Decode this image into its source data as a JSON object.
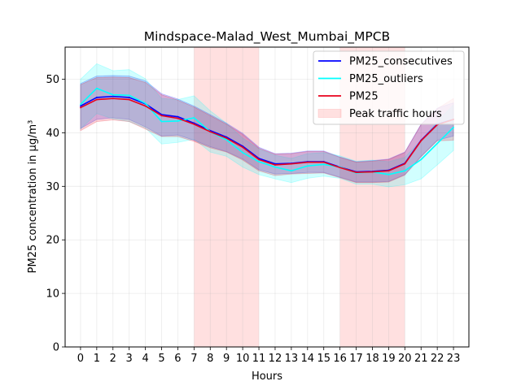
{
  "chart_data": {
    "type": "line",
    "title": "Mindspace-Malad_West_Mumbai_MPCB",
    "xlabel": "Hours",
    "ylabel": "PM25 concentration in µg/m³",
    "x": [
      0,
      1,
      2,
      3,
      4,
      5,
      6,
      7,
      8,
      9,
      10,
      11,
      12,
      13,
      14,
      15,
      16,
      17,
      18,
      19,
      20,
      21,
      22,
      23
    ],
    "x_ticks": [
      "0",
      "1",
      "2",
      "3",
      "4",
      "5",
      "6",
      "7",
      "8",
      "9",
      "10",
      "11",
      "12",
      "13",
      "14",
      "15",
      "16",
      "17",
      "18",
      "19",
      "20",
      "21",
      "22",
      "23"
    ],
    "y_ticks": [
      0,
      10,
      20,
      30,
      40,
      50
    ],
    "xlim": [
      -0.95,
      23.95
    ],
    "ylim": [
      0,
      56
    ],
    "grid": true,
    "legend_position": "top-right",
    "peak_traffic_hours": [
      [
        7,
        11
      ],
      [
        16,
        20
      ]
    ],
    "series": [
      {
        "name": "PM25_consecutives",
        "color": "#0000ff",
        "values": [
          45.0,
          46.6,
          46.8,
          46.6,
          45.4,
          43.4,
          43.0,
          41.8,
          40.4,
          39.2,
          37.5,
          35.2,
          34.2,
          34.3,
          34.6,
          34.6,
          33.6,
          32.7,
          32.8,
          33.0,
          34.3,
          38.6,
          41.6,
          42.5
        ],
        "upper": [
          49.2,
          50.6,
          50.7,
          50.6,
          49.7,
          47.3,
          46.3,
          45.0,
          43.4,
          41.8,
          39.9,
          37.3,
          36.1,
          36.2,
          36.6,
          36.6,
          35.5,
          34.6,
          34.8,
          35.1,
          36.4,
          41.6,
          44.6,
          45.6
        ],
        "lower": [
          40.8,
          42.5,
          42.8,
          42.5,
          41.1,
          39.4,
          39.6,
          38.6,
          37.4,
          36.5,
          35.1,
          33.1,
          32.3,
          32.4,
          32.6,
          32.6,
          31.7,
          30.8,
          30.8,
          30.9,
          32.2,
          35.6,
          38.6,
          39.4
        ]
      },
      {
        "name": "PM25_outliers",
        "color": "#00ffff",
        "values": [
          45.3,
          48.3,
          47.1,
          47.0,
          45.5,
          42.1,
          42.2,
          42.8,
          40.2,
          38.7,
          36.3,
          34.6,
          33.6,
          32.9,
          33.8,
          34.1,
          33.6,
          32.5,
          32.7,
          32.2,
          32.9,
          35.0,
          38.0,
          41.0
        ],
        "upper": [
          50.0,
          52.9,
          51.6,
          51.8,
          50.1,
          46.4,
          46.2,
          46.9,
          44.1,
          41.8,
          39.0,
          37.0,
          35.8,
          35.2,
          36.1,
          36.3,
          35.7,
          34.7,
          34.9,
          34.6,
          35.4,
          38.6,
          42.1,
          45.2
        ],
        "lower": [
          40.7,
          43.6,
          42.6,
          42.1,
          40.9,
          37.9,
          38.2,
          38.8,
          36.4,
          35.6,
          33.6,
          32.2,
          31.4,
          30.7,
          31.5,
          31.9,
          31.5,
          30.4,
          30.4,
          29.9,
          30.3,
          31.4,
          34.0,
          36.7
        ]
      },
      {
        "name": "PM25",
        "color": "#e8001c",
        "values": [
          44.7,
          46.2,
          46.4,
          46.2,
          45.0,
          43.2,
          42.7,
          41.6,
          40.2,
          39.0,
          37.3,
          35.0,
          34.0,
          34.2,
          34.5,
          34.5,
          33.5,
          32.6,
          32.7,
          32.9,
          34.2,
          38.5,
          41.5,
          42.5
        ],
        "upper": [
          49.0,
          50.3,
          50.4,
          50.3,
          49.4,
          47.1,
          46.1,
          44.8,
          43.2,
          41.6,
          39.7,
          37.1,
          36.0,
          36.1,
          36.5,
          36.5,
          35.4,
          34.5,
          34.7,
          35.0,
          36.3,
          41.5,
          44.5,
          46.4
        ],
        "lower": [
          40.4,
          42.1,
          42.4,
          42.1,
          40.7,
          39.3,
          39.3,
          38.4,
          37.2,
          36.4,
          34.9,
          32.9,
          32.0,
          32.3,
          32.4,
          32.5,
          31.6,
          30.7,
          30.7,
          30.8,
          32.1,
          35.5,
          38.5,
          38.6
        ]
      }
    ],
    "legend": [
      {
        "label": "PM25_consecutives",
        "kind": "line",
        "color": "#0000ff"
      },
      {
        "label": "PM25_outliers",
        "kind": "line",
        "color": "#00ffff"
      },
      {
        "label": "PM25",
        "kind": "line",
        "color": "#e8001c"
      },
      {
        "label": "Peak traffic hours",
        "kind": "patch",
        "color": "#ffdddd"
      }
    ]
  }
}
